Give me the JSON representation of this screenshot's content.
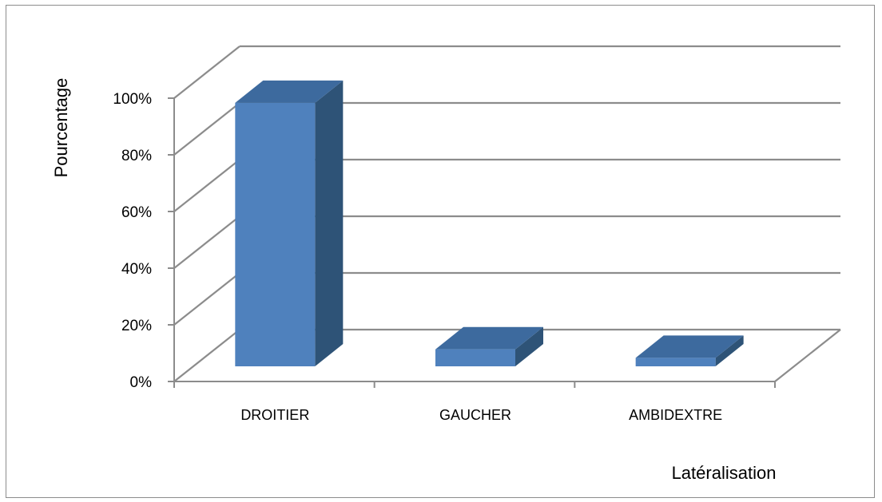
{
  "chart_data": {
    "type": "bar",
    "categories": [
      "DROITIER",
      "GAUCHER",
      "AMBIDEXTRE"
    ],
    "values": [
      93,
      6,
      3
    ],
    "xlabel": "Latéralisation",
    "ylabel": "Pourcentage",
    "ylim": [
      0,
      100
    ],
    "y_ticks": [
      0,
      20,
      40,
      60,
      80,
      100
    ],
    "y_tick_labels": [
      "0%",
      "20%",
      "40%",
      "60%",
      "80%",
      "100%"
    ],
    "three_d": true,
    "grid": true,
    "legend": false,
    "colors": {
      "bar_front": "#4f81bd",
      "bar_top": "#3d6a9e",
      "bar_side": "#2e5377",
      "grid": "#8c8c8c",
      "frame": "#8c8c8c"
    }
  }
}
